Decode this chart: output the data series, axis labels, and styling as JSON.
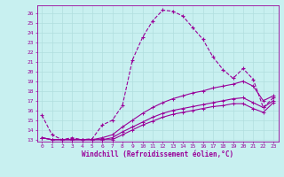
{
  "xlabel": "Windchill (Refroidissement éolien,°C)",
  "bg_color": "#c8f0f0",
  "grid_color": "#b0dede",
  "line_color": "#990099",
  "xlim": [
    -0.5,
    23.5
  ],
  "ylim": [
    12.8,
    26.8
  ],
  "yticks": [
    13,
    14,
    15,
    16,
    17,
    18,
    19,
    20,
    21,
    22,
    23,
    24,
    25,
    26
  ],
  "xticks": [
    0,
    1,
    2,
    3,
    4,
    5,
    6,
    7,
    8,
    9,
    10,
    11,
    12,
    13,
    14,
    15,
    16,
    17,
    18,
    19,
    20,
    21,
    22,
    23
  ],
  "series1_x": [
    0,
    1,
    2,
    3,
    4,
    5,
    6,
    7,
    8,
    9,
    10,
    11,
    12,
    13,
    14,
    15,
    16,
    17,
    18,
    19,
    20,
    21,
    22,
    23
  ],
  "series1_y": [
    15.5,
    13.5,
    13.0,
    13.2,
    13.0,
    13.1,
    14.5,
    15.0,
    16.5,
    21.2,
    23.5,
    25.2,
    26.3,
    26.2,
    25.7,
    24.5,
    23.3,
    21.5,
    20.2,
    19.3,
    20.3,
    19.2,
    16.3,
    17.3
  ],
  "series2_x": [
    0,
    1,
    2,
    3,
    4,
    5,
    6,
    7,
    8,
    9,
    10,
    11,
    12,
    13,
    14,
    15,
    16,
    17,
    18,
    19,
    20,
    21,
    22,
    23
  ],
  "series2_y": [
    13.2,
    13.0,
    13.0,
    13.0,
    13.0,
    13.0,
    13.2,
    13.5,
    14.3,
    15.0,
    15.7,
    16.3,
    16.8,
    17.2,
    17.5,
    17.8,
    18.0,
    18.3,
    18.5,
    18.7,
    19.0,
    18.5,
    17.0,
    17.5
  ],
  "series3_x": [
    0,
    1,
    2,
    3,
    4,
    5,
    6,
    7,
    8,
    9,
    10,
    11,
    12,
    13,
    14,
    15,
    16,
    17,
    18,
    19,
    20,
    21,
    22,
    23
  ],
  "series3_y": [
    13.2,
    13.0,
    13.0,
    13.0,
    13.0,
    13.0,
    13.0,
    13.2,
    13.8,
    14.3,
    14.8,
    15.3,
    15.7,
    16.0,
    16.2,
    16.4,
    16.6,
    16.8,
    17.0,
    17.2,
    17.3,
    16.8,
    16.3,
    17.0
  ],
  "series4_x": [
    0,
    1,
    2,
    3,
    4,
    5,
    6,
    7,
    8,
    9,
    10,
    11,
    12,
    13,
    14,
    15,
    16,
    17,
    18,
    19,
    20,
    21,
    22,
    23
  ],
  "series4_y": [
    13.2,
    13.0,
    13.0,
    13.0,
    13.0,
    13.0,
    13.0,
    13.0,
    13.5,
    14.0,
    14.5,
    14.9,
    15.3,
    15.6,
    15.8,
    16.0,
    16.2,
    16.4,
    16.5,
    16.7,
    16.7,
    16.2,
    15.8,
    16.8
  ]
}
